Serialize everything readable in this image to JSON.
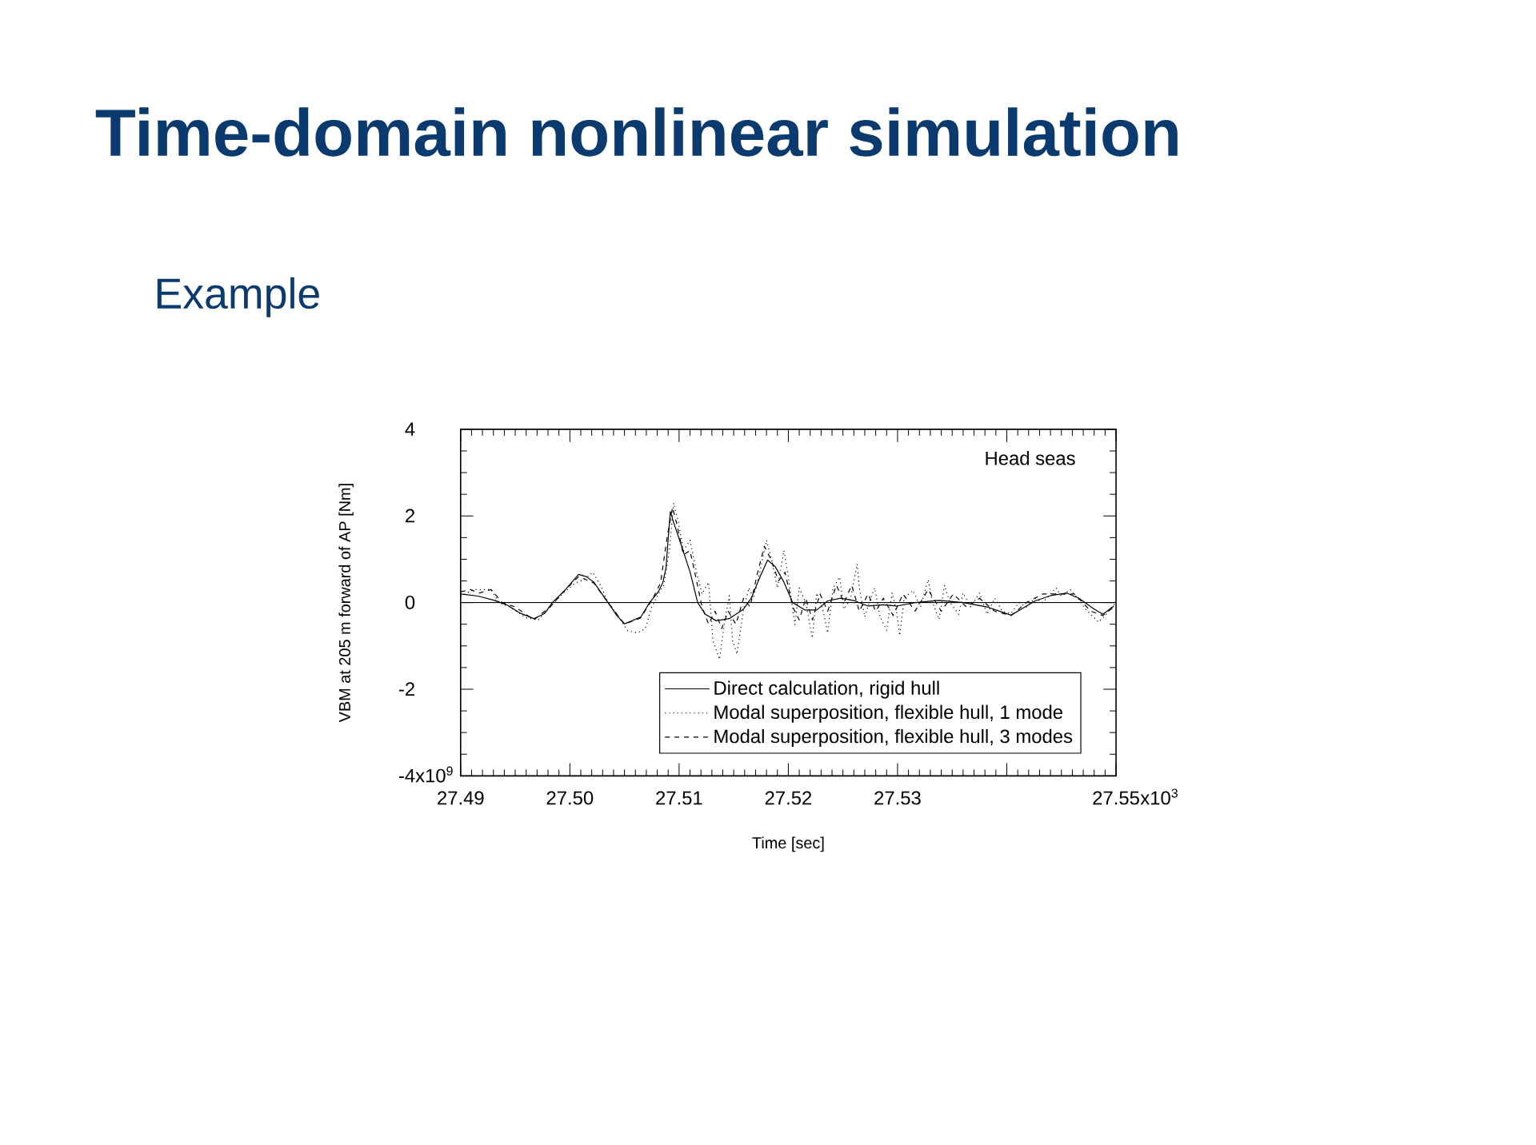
{
  "chart_data": {
    "type": "line",
    "title": "Time-domain nonlinear simulation",
    "subtitle": "Example",
    "xlabel": "Time [sec]",
    "ylabel": "VBM at 205 m forward of AP [Nm]",
    "annotations": [
      "Head seas",
      "x10$^{3}$",
      "x10$^{9}$"
    ],
    "xlim": [
      27.49,
      27.55
    ],
    "xticks": [
      27.49,
      {
        "value": 27.5,
        "label": "27.50"
      },
      27.51,
      27.52,
      27.53,
      {
        "value": 27.54,
        "label": null
      },
      27.55
    ],
    "ylim": [
      -4,
      4
    ],
    "yticks": [
      -4,
      -2,
      0,
      2,
      4
    ],
    "legend": "bottom right",
    "ref_lines": [
      {
        "axis": "y",
        "value": 0,
        "color": "#000000",
        "line_style": "solid"
      }
    ],
    "series": [
      {
        "name": "Direct calculation, rigid hull",
        "color": "#000000",
        "line_style": "solid",
        "x": [
          27.49,
          27.4916,
          27.4931,
          27.4942,
          27.4955,
          27.4967,
          27.4977,
          27.4984,
          27.4996,
          27.5008,
          27.5015,
          27.5022,
          27.5028,
          27.5035,
          27.5043,
          27.505,
          27.5057,
          27.5065,
          27.5073,
          27.5081,
          27.5085,
          27.5088,
          27.5091,
          27.5092,
          27.5095,
          27.5101,
          27.511,
          27.5117,
          27.5124,
          27.5134,
          27.5146,
          27.5159,
          27.5166,
          27.5174,
          27.5181,
          27.5188,
          27.5196,
          27.5204,
          27.5215,
          27.5226,
          27.5236,
          27.5248,
          27.5261,
          27.5273,
          27.5287,
          27.5299,
          27.5316,
          27.5338,
          27.536,
          27.5382,
          27.5404,
          27.5426,
          27.544,
          27.5455,
          27.5466,
          27.548,
          27.5488,
          27.5498
        ],
        "values": [
          0.2,
          0.15,
          0.05,
          -0.05,
          -0.25,
          -0.37,
          -0.25,
          0,
          0.3,
          0.65,
          0.6,
          0.47,
          0.25,
          0,
          -0.3,
          -0.49,
          -0.42,
          -0.33,
          0,
          0.25,
          0.45,
          0.8,
          1.8,
          2.1,
          1.85,
          1.4,
          0.71,
          0,
          -0.27,
          -0.42,
          -0.37,
          -0.15,
          0.1,
          0.59,
          0.98,
          0.83,
          0.47,
          0,
          -0.17,
          -0.17,
          0.04,
          0.1,
          0.04,
          -0.08,
          -0.05,
          -0.08,
          0,
          0.05,
          0,
          -0.1,
          -0.29,
          0.04,
          0.16,
          0.22,
          0.1,
          -0.15,
          -0.27,
          -0.08
        ]
      },
      {
        "name": "Modal superposition, flexible hull, 1 mode",
        "color": "#000000",
        "line_style": "dotted",
        "x": [
          27.49,
          27.4912,
          27.4928,
          27.4935,
          27.4945,
          27.496,
          27.4971,
          27.4982,
          27.4993,
          27.5005,
          27.5014,
          27.5021,
          27.5028,
          27.5035,
          27.5044,
          27.5053,
          27.5062,
          27.5069,
          27.5075,
          27.5081,
          27.5086,
          27.5091,
          27.5095,
          27.5099,
          27.5104,
          27.511,
          27.5116,
          27.5121,
          27.5127,
          27.5131,
          27.5137,
          27.5142,
          27.5146,
          27.5149,
          27.5153,
          27.5159,
          27.5164,
          27.5168,
          27.5174,
          27.518,
          27.5185,
          27.519,
          27.5196,
          27.52,
          27.5206,
          27.521,
          27.5216,
          27.5222,
          27.5226,
          27.5232,
          27.5236,
          27.5241,
          27.5247,
          27.5251,
          27.5257,
          27.5263,
          27.5265,
          27.527,
          27.5274,
          27.5279,
          27.5284,
          27.529,
          27.5295,
          27.5299,
          27.5302,
          27.5306,
          27.5314,
          27.5321,
          27.5328,
          27.5332,
          27.5338,
          27.5343,
          27.5348,
          27.5356,
          27.536,
          27.5367,
          27.5375,
          27.5382,
          27.5389,
          27.5396,
          27.5404,
          27.5411,
          27.5418,
          27.5426,
          27.5433,
          27.544,
          27.5445,
          27.545,
          27.5458,
          27.5465,
          27.5472,
          27.5478,
          27.5484,
          27.549,
          27.5496,
          27.55
        ],
        "values": [
          0.15,
          0.3,
          0.3,
          0.0,
          -0.1,
          -0.35,
          -0.4,
          -0.1,
          0.2,
          0.45,
          0.55,
          0.7,
          0.4,
          0.0,
          -0.3,
          -0.65,
          -0.7,
          -0.6,
          -0.1,
          0.2,
          0.4,
          1.2,
          2.3,
          1.9,
          1.2,
          1.44,
          0.7,
          0.2,
          0.47,
          -0.88,
          -1.31,
          -0.39,
          0.16,
          -0.88,
          -1.19,
          -0.15,
          0.34,
          0.1,
          0.71,
          1.44,
          0.96,
          0.34,
          1.2,
          0.59,
          -0.51,
          0.34,
          0.0,
          -0.82,
          0.22,
          -0.2,
          -0.7,
          0.34,
          0.59,
          -0.15,
          0.1,
          0.89,
          0.34,
          -0.33,
          0.0,
          0.34,
          -0.33,
          -0.64,
          0.22,
          -0.2,
          -0.76,
          0.1,
          0.28,
          -0.1,
          0.53,
          0.0,
          -0.39,
          0.4,
          0.0,
          -0.27,
          0.22,
          -0.1,
          0.22,
          -0.27,
          0.1,
          -0.2,
          -0.25,
          0.0,
          -0.1,
          0.1,
          0.0,
          0.2,
          0.34,
          0.15,
          0.3,
          0.1,
          -0.15,
          -0.3,
          -0.45,
          -0.3,
          -0.1,
          0.0
        ]
      },
      {
        "name": "Modal superposition, flexible hull, 3 modes",
        "color": "#000000",
        "line_style": "dashed",
        "x": [
          27.49,
          27.4909,
          27.4917,
          27.4928,
          27.4938,
          27.495,
          27.4967,
          27.4982,
          27.4996,
          27.5008,
          27.5022,
          27.5035,
          27.505,
          27.5065,
          27.5076,
          27.5083,
          27.5089,
          27.5094,
          27.5098,
          27.5104,
          27.511,
          27.5116,
          27.5121,
          27.5127,
          27.5133,
          27.5139,
          27.5145,
          27.5152,
          27.5159,
          27.5165,
          27.5171,
          27.5178,
          27.5184,
          27.5191,
          27.5197,
          27.5204,
          27.521,
          27.5216,
          27.5222,
          27.5229,
          27.5236,
          27.5244,
          27.5251,
          27.5258,
          27.5265,
          27.5273,
          27.528,
          27.5287,
          27.5296,
          27.5305,
          27.5316,
          27.5328,
          27.534,
          27.5351,
          27.5363,
          27.5375,
          27.5389,
          27.5404,
          27.5418,
          27.5433,
          27.5447,
          27.5462,
          27.5477,
          27.5488,
          27.5498
        ],
        "values": [
          0.25,
          0.3,
          0.22,
          0.3,
          0.0,
          -0.1,
          -0.4,
          -0.1,
          0.3,
          0.6,
          0.45,
          0.0,
          -0.5,
          -0.35,
          0.1,
          0.45,
          1.5,
          2.2,
          1.8,
          1.1,
          1.2,
          0.5,
          -0.1,
          -0.5,
          -0.2,
          -0.6,
          -0.2,
          -0.5,
          0.1,
          -0.1,
          0.6,
          1.3,
          1.0,
          0.5,
          0.7,
          -0.1,
          -0.4,
          0.1,
          -0.4,
          0.2,
          -0.2,
          0.4,
          0.0,
          0.4,
          -0.2,
          0.2,
          -0.2,
          0.1,
          -0.3,
          0.2,
          -0.2,
          0.3,
          -0.2,
          0.2,
          -0.1,
          0.1,
          -0.2,
          -0.3,
          0.0,
          0.2,
          0.2,
          0.2,
          -0.2,
          -0.3,
          -0.1
        ]
      }
    ]
  }
}
